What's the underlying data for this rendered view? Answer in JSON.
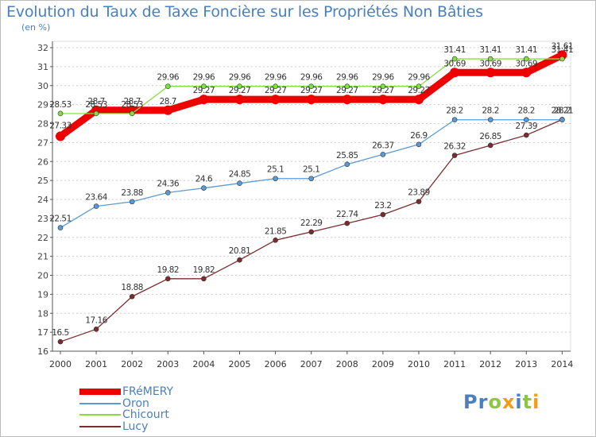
{
  "title": "Evolution du Taux de Taxe Foncière sur les Propriétés Non Bâties",
  "unit_label": "(en %)",
  "logo": "Proxiti",
  "colors": {
    "text": "#4a7fc0",
    "grid": "#cccccc",
    "axis": "#555555"
  },
  "chart_data": {
    "type": "line",
    "title": "Evolution du Taux de Taxe Foncière sur les Propriétés Non Bâties",
    "ylabel": "(en %)",
    "xlabel": "",
    "x": [
      "2000",
      "2001",
      "2002",
      "2003",
      "2004",
      "2005",
      "2006",
      "2007",
      "2008",
      "2009",
      "2010",
      "2011",
      "2012",
      "2013",
      "2014"
    ],
    "ylim": [
      16,
      32
    ],
    "yticks": [
      16,
      17,
      18,
      19,
      20,
      21,
      22,
      23,
      24,
      25,
      26,
      27,
      28,
      29,
      30,
      31,
      32
    ],
    "grid": "horizontal dashed",
    "legend_position": "bottom-left",
    "series": [
      {
        "name": "FRéMERY",
        "color": "#ee0000",
        "style": "thick",
        "values": [
          27.33,
          28.7,
          28.7,
          28.7,
          29.27,
          29.27,
          29.27,
          29.27,
          29.27,
          29.27,
          29.27,
          30.69,
          30.69,
          30.69,
          31.61
        ],
        "labels": [
          "27.33",
          "28.7",
          "28.7",
          "28.7",
          "29.27",
          "29.27",
          "29.27",
          "29.27",
          "29.27",
          "29.27",
          "29.27",
          "30.69",
          "30.69",
          "30.69",
          "31.61"
        ]
      },
      {
        "name": "Oron",
        "color": "#5b9bd5",
        "style": "thin",
        "values": [
          22.51,
          23.64,
          23.88,
          24.36,
          24.6,
          24.85,
          25.1,
          25.1,
          25.85,
          26.37,
          26.9,
          28.2,
          28.2,
          28.2,
          28.2
        ],
        "labels": [
          "22.51",
          "23.64",
          "23.88",
          "24.36",
          "24.6",
          "24.85",
          "25.1",
          "25.1",
          "25.85",
          "26.37",
          "26.9",
          "28.2",
          "28.2",
          "28.2",
          "28.2"
        ]
      },
      {
        "name": "Chicourt",
        "color": "#88dd44",
        "style": "thin",
        "values": [
          28.53,
          28.53,
          28.53,
          29.96,
          29.96,
          29.96,
          29.96,
          29.96,
          29.96,
          29.96,
          29.96,
          31.41,
          31.41,
          31.41,
          31.41
        ],
        "labels": [
          "28.53",
          "28.53",
          "28.53",
          "29.96",
          "29.96",
          "29.96",
          "29.96",
          "29.96",
          "29.96",
          "29.96",
          "29.96",
          "31.41",
          "31.41",
          "31.41",
          "31.41"
        ]
      },
      {
        "name": "Lucy",
        "color": "#7b2c2c",
        "style": "thin",
        "values": [
          16.5,
          17.16,
          18.88,
          19.82,
          19.82,
          20.81,
          21.85,
          22.29,
          22.74,
          23.2,
          23.89,
          26.32,
          26.85,
          27.39,
          28.21
        ],
        "labels": [
          "16.5",
          "17.16",
          "18.88",
          "19.82",
          "19.82",
          "20.81",
          "21.85",
          "22.29",
          "22.74",
          "23.2",
          "23.89",
          "26.32",
          "26.85",
          "27.39",
          "28.21"
        ]
      }
    ]
  }
}
